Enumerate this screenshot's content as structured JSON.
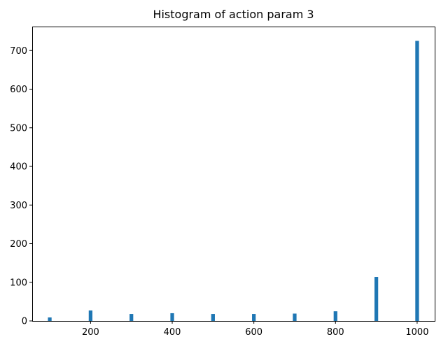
{
  "chart_data": {
    "type": "bar",
    "title": "Histogram of action param 3",
    "xlabel": "",
    "ylabel": "",
    "xlim": [
      57,
      1043
    ],
    "ylim": [
      0,
      762
    ],
    "grid": false,
    "color": "#1f77b4",
    "bin_width": 9,
    "x": [
      100,
      200,
      300,
      400,
      500,
      600,
      700,
      800,
      900,
      1000
    ],
    "values": [
      9,
      27,
      18,
      20,
      18,
      18,
      19,
      25,
      114,
      725
    ],
    "xticks": [
      200,
      400,
      600,
      800,
      1000
    ],
    "yticks": [
      0,
      100,
      200,
      300,
      400,
      500,
      600,
      700
    ]
  }
}
